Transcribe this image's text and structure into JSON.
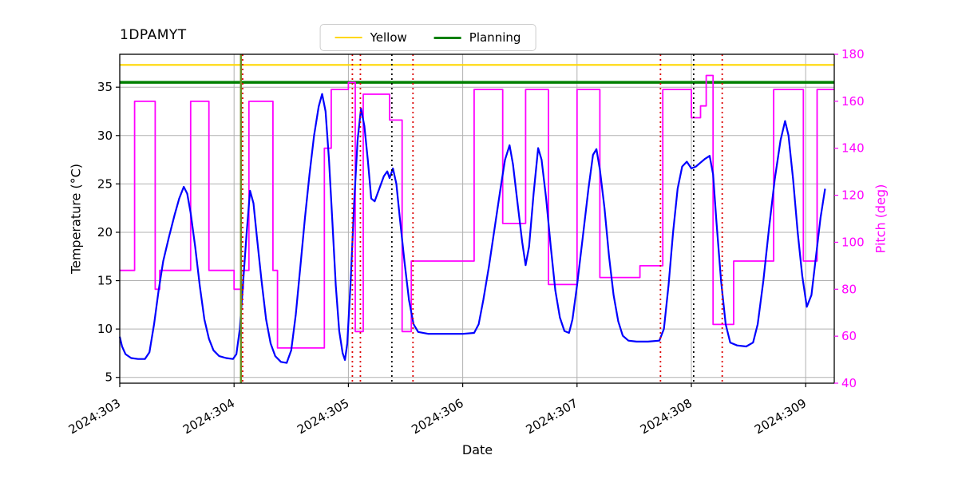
{
  "chart_data": {
    "type": "line",
    "title": "1DPAMYT",
    "xlabel": "Date",
    "ylabel_left": "Temperature (°C)",
    "ylabel_right": "Pitch (deg)",
    "xlim": [
      303.0,
      309.25
    ],
    "ylim_left": [
      4.4,
      38.4
    ],
    "ylim_right": [
      40,
      180
    ],
    "x_tick_values": [
      303,
      304,
      305,
      306,
      307,
      308,
      309
    ],
    "x_tick_labels": [
      "2024:303",
      "2024:304",
      "2024:305",
      "2024:306",
      "2024:307",
      "2024:308",
      "2024:309"
    ],
    "yticks_left": [
      5,
      10,
      15,
      20,
      25,
      30,
      35
    ],
    "yticks_right": [
      40,
      60,
      80,
      100,
      120,
      140,
      160,
      180
    ],
    "grid_color": "#b0b0b0",
    "legend": [
      {
        "label": "Yellow",
        "color": "#ffd700",
        "width": 2.5
      },
      {
        "label": "Planning",
        "color": "#008000",
        "width": 3.5
      }
    ],
    "hlines": [
      {
        "y": 37.3,
        "color": "#ffd700",
        "width": 2.2,
        "label": "Yellow"
      },
      {
        "y": 35.5,
        "color": "#008000",
        "width": 3.5,
        "label": "Planning"
      }
    ],
    "vlines": [
      {
        "x": 304.06,
        "color": "#6b8e23",
        "style": "solid",
        "width": 2.5
      },
      {
        "x": 304.075,
        "color": "#dd0000",
        "style": "dotted",
        "width": 1.8
      },
      {
        "x": 305.035,
        "color": "#dd0000",
        "style": "dotted",
        "width": 1.8
      },
      {
        "x": 305.105,
        "color": "#dd0000",
        "style": "dotted",
        "width": 1.8
      },
      {
        "x": 305.38,
        "color": "#000000",
        "style": "dotted",
        "width": 1.8
      },
      {
        "x": 305.565,
        "color": "#dd0000",
        "style": "dotted",
        "width": 1.8
      },
      {
        "x": 307.73,
        "color": "#dd0000",
        "style": "dotted",
        "width": 1.8
      },
      {
        "x": 308.02,
        "color": "#000000",
        "style": "dotted",
        "width": 1.8
      },
      {
        "x": 308.27,
        "color": "#dd0000",
        "style": "dotted",
        "width": 1.8
      }
    ],
    "series": [
      {
        "name": "Pitch",
        "color": "#ff00ff",
        "axis": "right",
        "step": true,
        "width": 1.8,
        "points": [
          [
            303.0,
            88
          ],
          [
            303.13,
            160
          ],
          [
            303.31,
            80
          ],
          [
            303.35,
            88
          ],
          [
            303.62,
            160
          ],
          [
            303.78,
            88
          ],
          [
            304.0,
            80
          ],
          [
            304.08,
            88
          ],
          [
            304.13,
            160
          ],
          [
            304.34,
            88
          ],
          [
            304.38,
            55
          ],
          [
            304.79,
            140
          ],
          [
            304.85,
            165
          ],
          [
            305.0,
            168
          ],
          [
            305.06,
            62
          ],
          [
            305.13,
            163
          ],
          [
            305.36,
            152
          ],
          [
            305.47,
            62
          ],
          [
            305.55,
            92
          ],
          [
            306.1,
            165
          ],
          [
            306.35,
            108
          ],
          [
            306.55,
            165
          ],
          [
            306.75,
            82
          ],
          [
            307.0,
            165
          ],
          [
            307.2,
            85
          ],
          [
            307.55,
            90
          ],
          [
            307.75,
            165
          ],
          [
            308.0,
            153
          ],
          [
            308.08,
            158
          ],
          [
            308.13,
            171
          ],
          [
            308.19,
            65
          ],
          [
            308.37,
            92
          ],
          [
            308.72,
            165
          ],
          [
            308.98,
            92
          ],
          [
            309.1,
            165
          ],
          [
            309.2,
            165
          ]
        ]
      },
      {
        "name": "Temperature",
        "color": "#0000ff",
        "axis": "left",
        "step": false,
        "width": 2.2,
        "points": [
          [
            303.0,
            9.2
          ],
          [
            303.02,
            8.2
          ],
          [
            303.05,
            7.4
          ],
          [
            303.1,
            7.0
          ],
          [
            303.16,
            6.9
          ],
          [
            303.22,
            6.9
          ],
          [
            303.26,
            7.6
          ],
          [
            303.3,
            10.5
          ],
          [
            303.34,
            14.0
          ],
          [
            303.38,
            17.0
          ],
          [
            303.43,
            19.5
          ],
          [
            303.48,
            21.8
          ],
          [
            303.52,
            23.5
          ],
          [
            303.56,
            24.7
          ],
          [
            303.59,
            24.0
          ],
          [
            303.62,
            22.0
          ],
          [
            303.66,
            18.5
          ],
          [
            303.7,
            14.5
          ],
          [
            303.74,
            11.0
          ],
          [
            303.78,
            9.0
          ],
          [
            303.82,
            7.8
          ],
          [
            303.87,
            7.2
          ],
          [
            303.93,
            7.0
          ],
          [
            303.99,
            6.9
          ],
          [
            304.02,
            7.4
          ],
          [
            304.05,
            10.0
          ],
          [
            304.08,
            15.0
          ],
          [
            304.11,
            20.0
          ],
          [
            304.14,
            24.3
          ],
          [
            304.17,
            23.0
          ],
          [
            304.2,
            19.5
          ],
          [
            304.24,
            15.0
          ],
          [
            304.28,
            11.0
          ],
          [
            304.32,
            8.5
          ],
          [
            304.36,
            7.2
          ],
          [
            304.41,
            6.6
          ],
          [
            304.46,
            6.5
          ],
          [
            304.5,
            7.8
          ],
          [
            304.54,
            11.5
          ],
          [
            304.58,
            16.5
          ],
          [
            304.62,
            21.5
          ],
          [
            304.66,
            26.0
          ],
          [
            304.7,
            30.0
          ],
          [
            304.74,
            33.0
          ],
          [
            304.77,
            34.3
          ],
          [
            304.8,
            32.5
          ],
          [
            304.83,
            27.5
          ],
          [
            304.86,
            21.0
          ],
          [
            304.89,
            14.5
          ],
          [
            304.92,
            9.8
          ],
          [
            304.95,
            7.5
          ],
          [
            304.97,
            6.8
          ],
          [
            304.99,
            8.5
          ],
          [
            305.02,
            15.0
          ],
          [
            305.05,
            23.0
          ],
          [
            305.08,
            29.5
          ],
          [
            305.11,
            32.8
          ],
          [
            305.14,
            31.0
          ],
          [
            305.17,
            27.5
          ],
          [
            305.2,
            23.5
          ],
          [
            305.23,
            23.2
          ],
          [
            305.27,
            24.5
          ],
          [
            305.31,
            25.8
          ],
          [
            305.34,
            26.3
          ],
          [
            305.36,
            25.6
          ],
          [
            305.39,
            26.6
          ],
          [
            305.42,
            25.0
          ],
          [
            305.45,
            21.5
          ],
          [
            305.49,
            17.0
          ],
          [
            305.53,
            13.0
          ],
          [
            305.57,
            10.5
          ],
          [
            305.61,
            9.7
          ],
          [
            305.7,
            9.5
          ],
          [
            305.85,
            9.5
          ],
          [
            306.0,
            9.5
          ],
          [
            306.1,
            9.6
          ],
          [
            306.14,
            10.5
          ],
          [
            306.18,
            13.0
          ],
          [
            306.23,
            16.5
          ],
          [
            306.28,
            20.5
          ],
          [
            306.33,
            24.5
          ],
          [
            306.37,
            27.5
          ],
          [
            306.41,
            29.0
          ],
          [
            306.44,
            27.0
          ],
          [
            306.48,
            23.0
          ],
          [
            306.52,
            19.0
          ],
          [
            306.55,
            16.6
          ],
          [
            306.58,
            18.5
          ],
          [
            306.62,
            24.0
          ],
          [
            306.66,
            28.7
          ],
          [
            306.69,
            27.5
          ],
          [
            306.73,
            23.5
          ],
          [
            306.77,
            18.5
          ],
          [
            306.81,
            14.0
          ],
          [
            306.85,
            11.2
          ],
          [
            306.89,
            9.8
          ],
          [
            306.93,
            9.6
          ],
          [
            306.96,
            11.0
          ],
          [
            307.0,
            14.5
          ],
          [
            307.05,
            19.5
          ],
          [
            307.1,
            24.5
          ],
          [
            307.14,
            28.0
          ],
          [
            307.17,
            28.6
          ],
          [
            307.2,
            26.5
          ],
          [
            307.24,
            22.5
          ],
          [
            307.28,
            17.5
          ],
          [
            307.32,
            13.5
          ],
          [
            307.36,
            10.8
          ],
          [
            307.4,
            9.3
          ],
          [
            307.45,
            8.8
          ],
          [
            307.52,
            8.7
          ],
          [
            307.62,
            8.7
          ],
          [
            307.72,
            8.8
          ],
          [
            307.76,
            10.0
          ],
          [
            307.8,
            14.5
          ],
          [
            307.84,
            20.0
          ],
          [
            307.88,
            24.5
          ],
          [
            307.92,
            26.8
          ],
          [
            307.96,
            27.3
          ],
          [
            308.0,
            26.6
          ],
          [
            308.04,
            26.8
          ],
          [
            308.08,
            27.2
          ],
          [
            308.12,
            27.6
          ],
          [
            308.16,
            27.9
          ],
          [
            308.19,
            26.0
          ],
          [
            308.22,
            21.0
          ],
          [
            308.26,
            15.0
          ],
          [
            308.3,
            10.5
          ],
          [
            308.34,
            8.6
          ],
          [
            308.4,
            8.3
          ],
          [
            308.48,
            8.2
          ],
          [
            308.54,
            8.6
          ],
          [
            308.58,
            10.5
          ],
          [
            308.63,
            15.0
          ],
          [
            308.68,
            20.5
          ],
          [
            308.73,
            25.5
          ],
          [
            308.78,
            29.5
          ],
          [
            308.82,
            31.5
          ],
          [
            308.85,
            30.0
          ],
          [
            308.89,
            25.5
          ],
          [
            308.93,
            20.0
          ],
          [
            308.97,
            15.5
          ],
          [
            309.01,
            12.3
          ],
          [
            309.05,
            13.5
          ],
          [
            309.09,
            17.5
          ],
          [
            309.13,
            21.5
          ],
          [
            309.17,
            24.5
          ]
        ]
      }
    ]
  }
}
